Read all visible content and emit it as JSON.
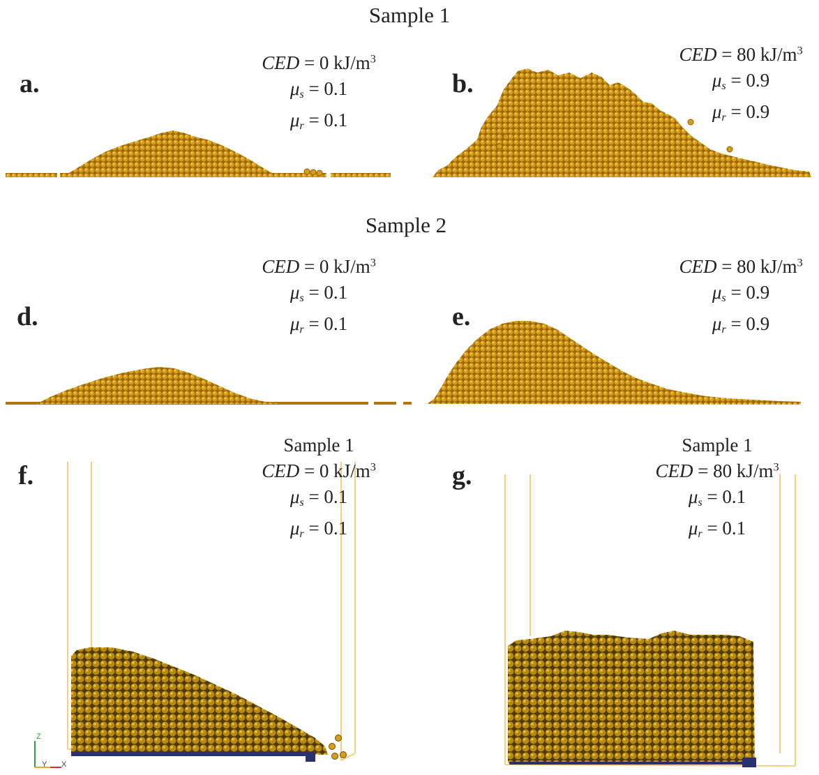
{
  "headings": {
    "sample1": "Sample 1",
    "sample2": "Sample 2"
  },
  "panels": {
    "a": {
      "letter": "a.",
      "ced_var": "CED",
      "ced_value": "= 0 kJ/m",
      "ced_exp": "3",
      "mus_sym": "μ",
      "mus_sub": "s",
      "mus_value": "= 0.1",
      "mur_sym": "μ",
      "mur_sub": "r",
      "mur_value": "= 0.1"
    },
    "b": {
      "letter": "b.",
      "ced_var": "CED",
      "ced_value": "= 80 kJ/m",
      "ced_exp": "3",
      "mus_sym": "μ",
      "mus_sub": "s",
      "mus_value": "= 0.9",
      "mur_sym": "μ",
      "mur_sub": "r",
      "mur_value": "= 0.9"
    },
    "d": {
      "letter": "d.",
      "ced_var": "CED",
      "ced_value": "= 0 kJ/m",
      "ced_exp": "3",
      "mus_sym": "μ",
      "mus_sub": "s",
      "mus_value": "= 0.1",
      "mur_sym": "μ",
      "mur_sub": "r",
      "mur_value": "= 0.1"
    },
    "e": {
      "letter": "e.",
      "ced_var": "CED",
      "ced_value": "= 80 kJ/m",
      "ced_exp": "3",
      "mus_sym": "μ",
      "mus_sub": "s",
      "mus_value": "= 0.9",
      "mur_sym": "μ",
      "mur_sub": "r",
      "mur_value": "= 0.9"
    },
    "f": {
      "letter": "f.",
      "sample": "Sample 1",
      "ced_var": "CED",
      "ced_value": "= 0 kJ/m",
      "ced_exp": "3",
      "mus_sym": "μ",
      "mus_sub": "s",
      "mus_value": "= 0.1",
      "mur_sym": "μ",
      "mur_sub": "r",
      "mur_value": "= 0.1"
    },
    "g": {
      "letter": "g.",
      "sample": "Sample 1",
      "ced_var": "CED",
      "ced_value": "= 80 kJ/m",
      "ced_exp": "3",
      "mus_sym": "μ",
      "mus_sub": "s",
      "mus_value": "= 0.1",
      "mur_sym": "μ",
      "mur_sub": "r",
      "mur_value": "= 0.1"
    }
  },
  "axes": {
    "z": "Z",
    "y": "Y",
    "x": "X"
  },
  "colors": {
    "particle": "#d49a16",
    "particle_dark": "#8a5c06",
    "particle_light": "#f2c445",
    "container": "#f5c16b",
    "base_plate": "#2a3170",
    "floor": "#b07410"
  }
}
